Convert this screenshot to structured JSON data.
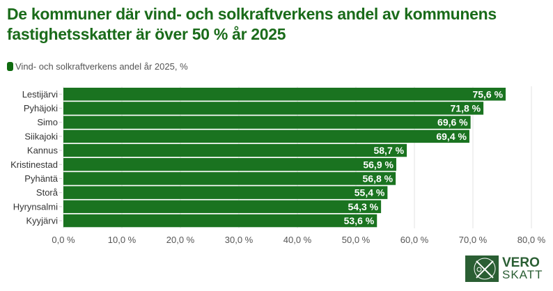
{
  "chart_data": {
    "type": "bar",
    "orientation": "horizontal",
    "title": "De kommuner där vind- och solkraftverkens andel av kommunens fastighetsskatter är över 50 % år 2025",
    "legend": [
      {
        "name": "Vind- och solkraftverkens andel år 2025, %",
        "color": "#1a7320"
      }
    ],
    "legend_position": "top-left",
    "categories": [
      "Lestijärvi",
      "Pyhäjoki",
      "Simo",
      "Siikajoki",
      "Kannus",
      "Kristinestad",
      "Pyhäntä",
      "Storå",
      "Hyrynsalmi",
      "Kyyjärvi"
    ],
    "values": [
      75.6,
      71.8,
      69.6,
      69.4,
      58.7,
      56.9,
      56.8,
      55.4,
      54.3,
      53.6
    ],
    "data_labels": [
      "75,6 %",
      "71,8 %",
      "69,6 %",
      "69,4 %",
      "58,7 %",
      "56,9 %",
      "56,8 %",
      "55,4 %",
      "54,3 %",
      "53,6 %"
    ],
    "xlim": [
      0,
      80
    ],
    "xticks": [
      0,
      10,
      20,
      30,
      40,
      50,
      60,
      70,
      80
    ],
    "xtick_labels": [
      "0,0 %",
      "10,0 %",
      "20,0 %",
      "30,0 %",
      "40,0 %",
      "50,0 %",
      "60,0 %",
      "70,0 %",
      "80,0 %"
    ],
    "grid": "vertical"
  },
  "logo": {
    "line1": "VERO",
    "line2": "SKATT",
    "color": "#2a5e33"
  }
}
